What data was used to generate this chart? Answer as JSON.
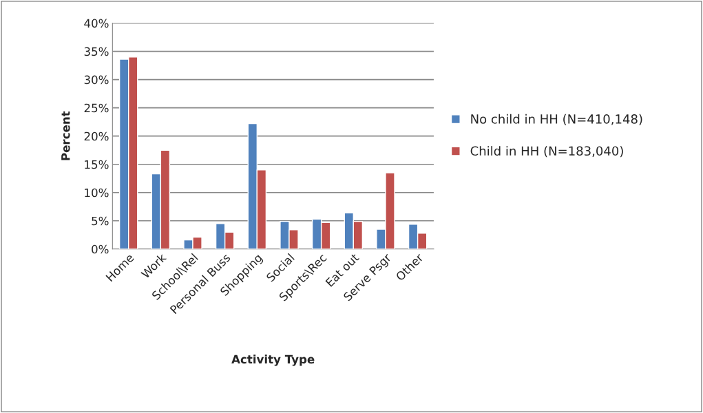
{
  "chart_data": {
    "type": "bar",
    "xlabel": "Activity Type",
    "ylabel": "Percent",
    "categories": [
      "Home",
      "Work",
      "School\\Rel",
      "Personal Buss",
      "Shopping",
      "Social",
      "Sports\\Rec",
      "Eat out",
      "Serve Psgr",
      "Other"
    ],
    "series": [
      {
        "name": "No child in HH (N=410,148)",
        "color": "#4f81bd",
        "values": [
          33.6,
          13.3,
          1.6,
          4.5,
          22.2,
          4.9,
          5.3,
          6.4,
          3.5,
          4.4
        ]
      },
      {
        "name": "Child in HH (N=183,040)",
        "color": "#c0504d",
        "values": [
          34.0,
          17.5,
          2.1,
          3.0,
          14.0,
          3.4,
          4.7,
          4.9,
          13.5,
          2.8
        ]
      }
    ],
    "ylim": [
      0,
      40
    ],
    "yticks": [
      {
        "value": 0,
        "label": "0%"
      },
      {
        "value": 5,
        "label": "5%"
      },
      {
        "value": 10,
        "label": "10%"
      },
      {
        "value": 15,
        "label": "15%"
      },
      {
        "value": 20,
        "label": "20%"
      },
      {
        "value": 25,
        "label": "25%"
      },
      {
        "value": 30,
        "label": "30%"
      },
      {
        "value": 35,
        "label": "35%"
      },
      {
        "value": 40,
        "label": "40%"
      }
    ],
    "grid": "y",
    "legend": "right"
  }
}
